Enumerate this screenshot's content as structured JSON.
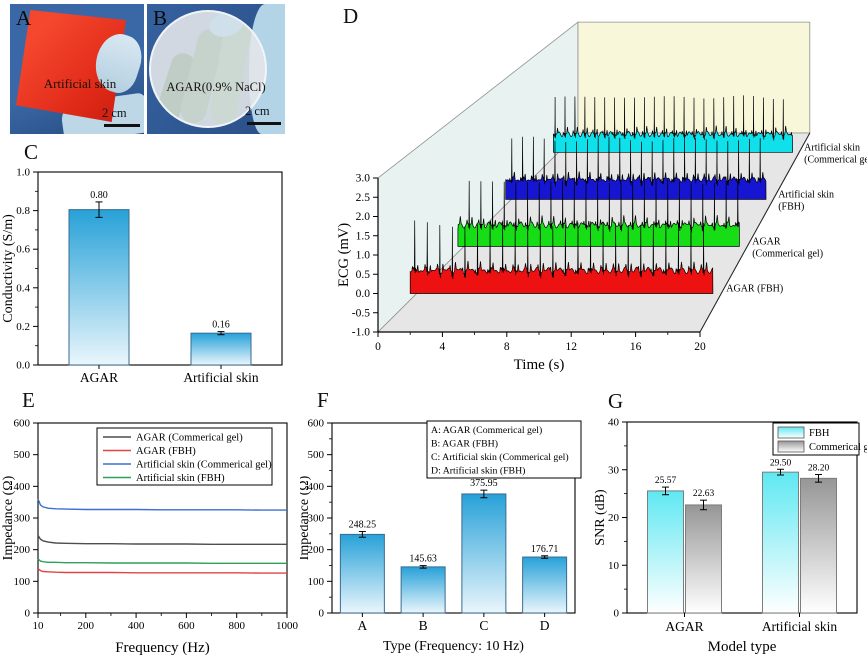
{
  "panels": {
    "a": {
      "letter": "A",
      "caption": "Artificial skin",
      "scale_label": "2 cm"
    },
    "b": {
      "letter": "B",
      "caption": "AGAR(0.9% NaCl)",
      "scale_label": "2 cm"
    },
    "c": {
      "letter": "C"
    },
    "d": {
      "letter": "D"
    },
    "e": {
      "letter": "E"
    },
    "f": {
      "letter": "F"
    },
    "g": {
      "letter": "G"
    }
  },
  "chart_data": [
    {
      "id": "c",
      "type": "bar",
      "ylabel": "Conductivity (S/m)",
      "categories": [
        "AGAR",
        "Artificial skin"
      ],
      "values": [
        0.805,
        0.165
      ],
      "errors": [
        0.04,
        0.008
      ],
      "value_labels": [
        "0.80",
        "0.16"
      ],
      "ylim": [
        0,
        1.0
      ],
      "yticks": [
        "0.0",
        "0.2",
        "0.4",
        "0.6",
        "0.8",
        "1.0"
      ],
      "y_minor_step": 0.1,
      "bar_gradient": [
        "#27a1d8",
        "#eaf6fc"
      ],
      "bar_stroke": "#3a6b8e"
    },
    {
      "id": "d",
      "type": "ecg3d",
      "ylabel": "ECG (mV)",
      "xlabel": "Time (s)",
      "ylim": [
        -1.0,
        3.0
      ],
      "yticks": [
        "3.0",
        "2.5",
        "2.0",
        "1.5",
        "1.0",
        "0.5",
        "0.0",
        "-0.5",
        "-1.0"
      ],
      "xlim": [
        0,
        20
      ],
      "xticks": [
        "0",
        "4",
        "8",
        "12",
        "16",
        "20"
      ],
      "x_minor": [
        2,
        6,
        10,
        14,
        18
      ],
      "time_range": [
        2,
        20.8
      ],
      "beat_period_s": 0.78,
      "walls": {
        "left": "#e7f2f1",
        "back": "#f9f7d9",
        "floor": "#e6e6e6",
        "edge": "#909090"
      },
      "series": [
        {
          "name": "AGAR (FBH)",
          "label_lines": [
            "AGAR (FBH)"
          ],
          "color": "#ee1111"
        },
        {
          "name": "AGAR (Commerical gel)",
          "label_lines": [
            "AGAR",
            "(Commerical gel)"
          ],
          "color": "#17dd17"
        },
        {
          "name": "Artificial skin (FBH)",
          "label_lines": [
            "Artificial skin",
            "(FBH)"
          ],
          "color": "#1515d2"
        },
        {
          "name": "Artificial skin (Commerical gel)",
          "label_lines": [
            "Artificial skin",
            "(Commerical gel)"
          ],
          "color": "#0fe0ea"
        }
      ]
    },
    {
      "id": "e",
      "type": "line",
      "ylabel": "Impedance (Ω)",
      "xlabel": "Frequency (Hz)",
      "ylim": [
        0,
        600
      ],
      "yticks": [
        "0",
        "100",
        "200",
        "300",
        "400",
        "500",
        "600"
      ],
      "xlim": [
        10,
        1000
      ],
      "xticks": [
        "10",
        "200",
        "400",
        "600",
        "800",
        "1000"
      ],
      "x_minor": [
        100,
        300,
        500,
        700,
        900
      ],
      "x": [
        10,
        20,
        30,
        50,
        80,
        120,
        200,
        300,
        400,
        500,
        600,
        700,
        800,
        900,
        1000
      ],
      "series": [
        {
          "name": "AGAR (Commerical gel)",
          "color": "#4d4d4d",
          "values": [
            245,
            233,
            228,
            224,
            221,
            220,
            219,
            219,
            218,
            218,
            218,
            217,
            217,
            217,
            217
          ]
        },
        {
          "name": "AGAR (FBH)",
          "color": "#e24444",
          "values": [
            140,
            134,
            131,
            130,
            129,
            128,
            128,
            128,
            127,
            127,
            127,
            127,
            127,
            126,
            126
          ]
        },
        {
          "name": "Artificial skin (Commerical gel)",
          "color": "#3c6fd6",
          "values": [
            360,
            341,
            335,
            331,
            329,
            328,
            327,
            327,
            327,
            326,
            326,
            326,
            326,
            325,
            325
          ]
        },
        {
          "name": "Artificial skin (FBH)",
          "color": "#2fa05c",
          "values": [
            171,
            164,
            162,
            160,
            160,
            159,
            159,
            158,
            158,
            158,
            158,
            157,
            157,
            157,
            157
          ]
        }
      ]
    },
    {
      "id": "f",
      "type": "bar",
      "ylabel": "Impedance (Ω)",
      "xlabel": "Type (Frequency: 10 Hz)",
      "categories": [
        "A",
        "B",
        "C",
        "D"
      ],
      "values": [
        248.25,
        145.63,
        375.95,
        176.71
      ],
      "errors": [
        9,
        4,
        12,
        4
      ],
      "value_labels": [
        "248.25",
        "145.63",
        "375.95",
        "176.71"
      ],
      "ylim": [
        0,
        600
      ],
      "yticks": [
        "0",
        "100",
        "200",
        "300",
        "400",
        "500",
        "600"
      ],
      "y_minor_step": 50,
      "legend_lines": [
        "A: AGAR (Commerical gel)",
        "B: AGAR (FBH)",
        "C: Artificial skin (Commerical gel)",
        "D: Artificial skin (FBH)"
      ],
      "bar_gradient": [
        "#27a1d8",
        "#eaf6fc"
      ],
      "bar_stroke": "#3a6b8e"
    },
    {
      "id": "g",
      "type": "grouped_bar",
      "ylabel": "SNR (dB)",
      "xlabel": "Model type",
      "categories": [
        "AGAR",
        "Artificial skin"
      ],
      "series": [
        {
          "name": "FBH",
          "gradient": [
            "#5fe8f2",
            "#ffffff"
          ],
          "stroke": "#7d7d7d",
          "values": [
            25.57,
            29.5
          ],
          "errors": [
            0.8,
            0.6
          ],
          "value_labels": [
            "25.57",
            "29.50"
          ]
        },
        {
          "name": "Commerical gel",
          "gradient": [
            "#969696",
            "#ffffff"
          ],
          "stroke": "#7d7d7d",
          "values": [
            22.63,
            28.2
          ],
          "errors": [
            1.0,
            0.8
          ],
          "value_labels": [
            "22.63",
            "28.20"
          ]
        }
      ],
      "ylim": [
        0,
        40
      ],
      "yticks": [
        "0",
        "10",
        "20",
        "30",
        "40"
      ],
      "y_minor_step": 5
    }
  ]
}
